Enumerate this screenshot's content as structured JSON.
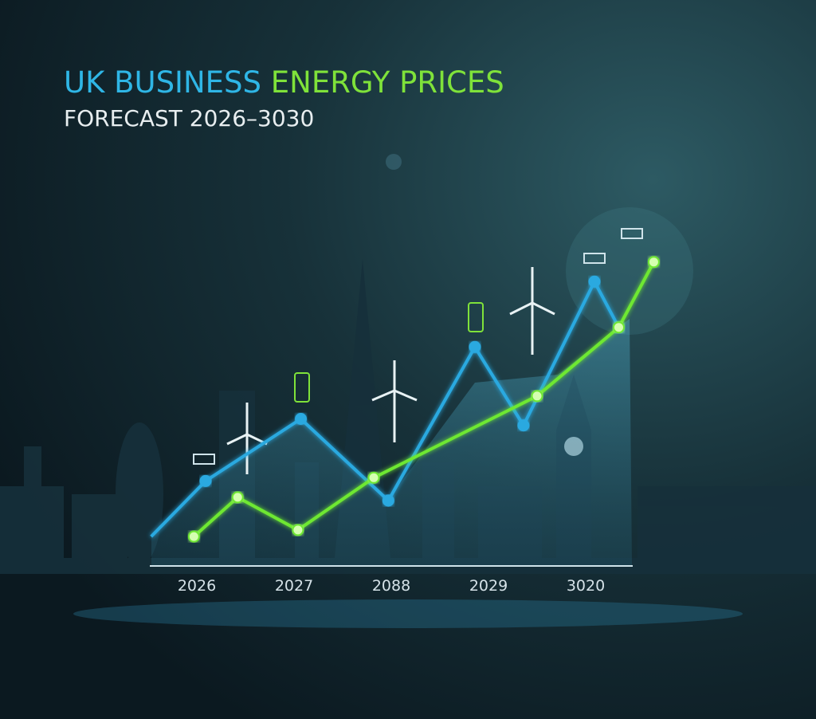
{
  "chart_data": {
    "type": "line",
    "title": [
      {
        "text": "UK BUSINESS",
        "color": "#2fb6e6"
      },
      {
        "text": "ENERGY PRICES",
        "color": "#7fe23a"
      }
    ],
    "subtitle": "FORECAST 2026–3030",
    "categories": [
      "2026",
      "2027",
      "2088",
      "2029",
      "3020"
    ],
    "xlim": [
      -0.5,
      4.75
    ],
    "ylim": [
      0,
      100
    ],
    "series": [
      {
        "color": "#2aa9e0",
        "x": [
          -0.47,
          0.09,
          1.07,
          1.97,
          2.86,
          3.36,
          4.09,
          4.34
        ],
        "values": [
          9,
          26,
          45,
          20,
          67,
          43,
          87,
          73
        ]
      },
      {
        "color": "#6ee830",
        "x": [
          -0.03,
          0.42,
          1.04,
          1.82,
          3.5,
          4.34,
          4.7
        ],
        "values": [
          9,
          21,
          11,
          27,
          52,
          73,
          93
        ]
      }
    ]
  }
}
